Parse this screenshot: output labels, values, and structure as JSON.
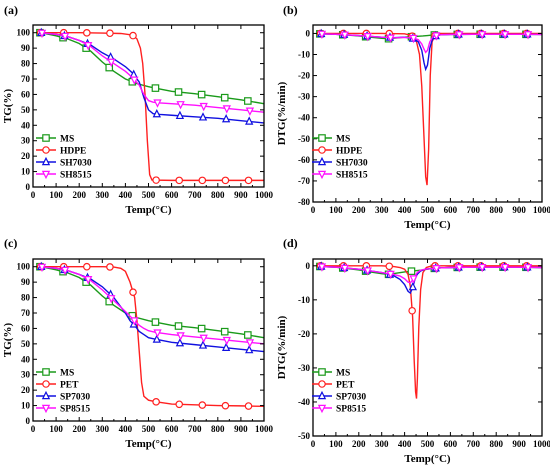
{
  "chart_data": [
    {
      "panel_label": "(a)",
      "type": "line",
      "xlabel": "Temp(°C)",
      "ylabel": "TG(%)",
      "xlim": [
        0,
        1000
      ],
      "ylim": [
        0,
        105
      ],
      "xticks": [
        0,
        100,
        200,
        300,
        400,
        500,
        600,
        700,
        800,
        900,
        1000
      ],
      "yticks": [
        0,
        10,
        20,
        30,
        40,
        50,
        60,
        70,
        80,
        90,
        100
      ],
      "legend_position": "bottom-left",
      "series": [
        {
          "name": "MS",
          "color": "#1a9a1a",
          "marker": "square",
          "x": [
            30,
            50,
            100,
            150,
            200,
            250,
            300,
            350,
            400,
            450,
            500,
            550,
            600,
            700,
            800,
            900,
            1000
          ],
          "y": [
            100,
            99.5,
            98,
            96,
            93,
            88,
            81,
            75,
            70,
            67,
            65,
            63.5,
            62,
            60.5,
            58.5,
            56.5,
            54
          ]
        },
        {
          "name": "HDPE",
          "color": "#ff2020",
          "marker": "circle",
          "x": [
            30,
            100,
            200,
            300,
            380,
            430,
            450,
            465,
            475,
            485,
            495,
            505,
            515,
            600,
            700,
            800,
            900,
            1000
          ],
          "y": [
            100,
            100,
            100,
            99.8,
            99.5,
            98.5,
            96,
            90,
            80,
            60,
            30,
            8,
            4.5,
            4.3,
            4.3,
            4.3,
            4.3,
            4.3
          ]
        },
        {
          "name": "SH7030",
          "color": "#1010e0",
          "marker": "triangle-up",
          "x": [
            30,
            100,
            150,
            200,
            250,
            300,
            350,
            400,
            430,
            460,
            480,
            500,
            520,
            550,
            600,
            700,
            800,
            900,
            1000
          ],
          "y": [
            100,
            99,
            97.5,
            95,
            92,
            87,
            83,
            78,
            74,
            68,
            58,
            50,
            47.5,
            47,
            46.5,
            45.5,
            44.5,
            43,
            41.5
          ]
        },
        {
          "name": "SH8515",
          "color": "#ff10ff",
          "marker": "triangle-down",
          "x": [
            30,
            100,
            150,
            200,
            250,
            300,
            350,
            400,
            430,
            460,
            480,
            500,
            520,
            550,
            600,
            700,
            800,
            900,
            1000
          ],
          "y": [
            100,
            99,
            97.5,
            95,
            91,
            85,
            80,
            75,
            71,
            66,
            60,
            56,
            55,
            54.5,
            54,
            53,
            51.5,
            50,
            48.5
          ]
        }
      ]
    },
    {
      "panel_label": "(b)",
      "type": "line",
      "xlabel": "Temp(°C)",
      "ylabel": "DTG(%/min)",
      "xlim": [
        0,
        1000
      ],
      "ylim": [
        -80,
        4
      ],
      "xticks": [
        0,
        100,
        200,
        300,
        400,
        500,
        600,
        700,
        800,
        900,
        1000
      ],
      "yticks": [
        0,
        -10,
        -20,
        -30,
        -40,
        -50,
        -60,
        -70,
        -80
      ],
      "legend_position": "bottom-left",
      "series": [
        {
          "name": "MS",
          "color": "#1a9a1a",
          "marker": "square",
          "x": [
            30,
            100,
            150,
            200,
            250,
            300,
            330,
            360,
            400,
            440,
            480,
            500,
            520,
            560,
            600,
            700,
            800,
            900,
            1000
          ],
          "y": [
            -0.2,
            -0.4,
            -0.8,
            -1.2,
            -1.8,
            -2.3,
            -2.5,
            -2.2,
            -1.8,
            -1.5,
            -1.2,
            -1.0,
            -0.8,
            -0.6,
            -0.5,
            -0.4,
            -0.4,
            -0.4,
            -0.5
          ]
        },
        {
          "name": "HDPE",
          "color": "#ff2020",
          "marker": "circle",
          "x": [
            30,
            100,
            200,
            300,
            400,
            430,
            450,
            465,
            475,
            485,
            492,
            498,
            505,
            512,
            520,
            535,
            560,
            600,
            700,
            800,
            900,
            1000
          ],
          "y": [
            0,
            0,
            0,
            0,
            -0.2,
            -1,
            -3,
            -10,
            -25,
            -50,
            -68,
            -72,
            -55,
            -20,
            -4,
            -0.5,
            0,
            0,
            0,
            0,
            0,
            0
          ]
        },
        {
          "name": "SH7030",
          "color": "#1010e0",
          "marker": "triangle-up",
          "x": [
            30,
            100,
            200,
            300,
            350,
            400,
            440,
            460,
            475,
            485,
            492,
            500,
            510,
            525,
            560,
            600,
            700,
            800,
            900,
            1000
          ],
          "y": [
            -0.2,
            -0.4,
            -1,
            -1.8,
            -2,
            -1.8,
            -2.5,
            -4,
            -8,
            -14,
            -17,
            -15,
            -7,
            -1.5,
            -0.6,
            -0.5,
            -0.4,
            -0.4,
            -0.4,
            -0.5
          ]
        },
        {
          "name": "SH8515",
          "color": "#ff10ff",
          "marker": "triangle-down",
          "x": [
            30,
            100,
            200,
            300,
            350,
            400,
            440,
            460,
            475,
            485,
            492,
            500,
            510,
            525,
            560,
            600,
            700,
            800,
            900,
            1000
          ],
          "y": [
            -0.2,
            -0.4,
            -1,
            -1.8,
            -2.1,
            -1.9,
            -2.2,
            -3,
            -5,
            -7.5,
            -9,
            -8,
            -4,
            -1.2,
            -0.6,
            -0.5,
            -0.4,
            -0.4,
            -0.4,
            -0.5
          ]
        }
      ]
    },
    {
      "panel_label": "(c)",
      "type": "line",
      "xlabel": "Temp(°C)",
      "ylabel": "TG(%)",
      "xlim": [
        0,
        1000
      ],
      "ylim": [
        0,
        105
      ],
      "xticks": [
        0,
        100,
        200,
        300,
        400,
        500,
        600,
        700,
        800,
        900,
        1000
      ],
      "yticks": [
        0,
        10,
        20,
        30,
        40,
        50,
        60,
        70,
        80,
        90,
        100
      ],
      "legend_position": "bottom-left",
      "series": [
        {
          "name": "MS",
          "color": "#1a9a1a",
          "marker": "square",
          "x": [
            30,
            50,
            100,
            150,
            200,
            250,
            300,
            350,
            400,
            450,
            500,
            550,
            600,
            700,
            800,
            900,
            1000
          ],
          "y": [
            100,
            99.5,
            98,
            96,
            93,
            88,
            81,
            75,
            70,
            67,
            65,
            63.5,
            62,
            60.5,
            58.5,
            56.5,
            54
          ]
        },
        {
          "name": "PET",
          "color": "#ff2020",
          "marker": "circle",
          "x": [
            30,
            100,
            200,
            300,
            350,
            380,
            400,
            420,
            440,
            450,
            460,
            470,
            480,
            500,
            530,
            600,
            700,
            800,
            900,
            1000
          ],
          "y": [
            100,
            100,
            100,
            100,
            99.8,
            99,
            97,
            90,
            80,
            65,
            45,
            25,
            16,
            13.5,
            12.5,
            11,
            10.5,
            10,
            9.8,
            9.5
          ]
        },
        {
          "name": "SP7030",
          "color": "#1010e0",
          "marker": "triangle-up",
          "x": [
            30,
            100,
            150,
            200,
            250,
            300,
            350,
            400,
            420,
            440,
            460,
            480,
            500,
            530,
            600,
            700,
            800,
            900,
            1000
          ],
          "y": [
            100,
            99,
            97.5,
            95,
            92,
            87,
            80,
            70,
            65,
            62,
            58,
            56,
            54,
            53,
            51,
            49.5,
            48,
            46.5,
            45
          ]
        },
        {
          "name": "SP8515",
          "color": "#ff10ff",
          "marker": "triangle-down",
          "x": [
            30,
            100,
            150,
            200,
            250,
            300,
            350,
            400,
            420,
            440,
            460,
            480,
            500,
            530,
            600,
            700,
            800,
            900,
            1000
          ],
          "y": [
            100,
            99,
            97.5,
            95,
            91,
            85,
            78,
            71,
            68,
            65,
            62,
            60,
            58.5,
            57.5,
            56,
            54.5,
            53,
            51.5,
            50
          ]
        }
      ]
    },
    {
      "panel_label": "(d)",
      "type": "line",
      "xlabel": "Temp(°C)",
      "ylabel": "DTG(%/min)",
      "xlim": [
        0,
        1000
      ],
      "ylim": [
        -50,
        2
      ],
      "xticks": [
        0,
        100,
        200,
        300,
        400,
        500,
        600,
        700,
        800,
        900,
        1000
      ],
      "yticks": [
        0,
        -10,
        -20,
        -30,
        -40,
        -50
      ],
      "legend_position": "bottom-left",
      "series": [
        {
          "name": "MS",
          "color": "#1a9a1a",
          "marker": "square",
          "x": [
            30,
            100,
            150,
            200,
            250,
            300,
            330,
            360,
            400,
            440,
            480,
            500,
            520,
            560,
            600,
            700,
            800,
            900,
            1000
          ],
          "y": [
            -0.2,
            -0.4,
            -0.8,
            -1.2,
            -1.8,
            -2.3,
            -2.5,
            -2.2,
            -1.8,
            -1.5,
            -1.2,
            -1.0,
            -0.8,
            -0.6,
            -0.5,
            -0.4,
            -0.4,
            -0.4,
            -0.5
          ]
        },
        {
          "name": "PET",
          "color": "#ff2020",
          "marker": "circle",
          "x": [
            30,
            100,
            200,
            300,
            350,
            380,
            400,
            415,
            425,
            435,
            442,
            448,
            452,
            456,
            462,
            470,
            480,
            495,
            520,
            560,
            600,
            700,
            800,
            900,
            1000
          ],
          "y": [
            0,
            0,
            0,
            0,
            -0.2,
            -0.5,
            -1,
            -2.5,
            -6,
            -15,
            -28,
            -37,
            -39,
            -33,
            -18,
            -7,
            -2,
            -0.5,
            0,
            0,
            0,
            0,
            0,
            0,
            0
          ]
        },
        {
          "name": "SP7030",
          "color": "#1010e0",
          "marker": "triangle-up",
          "x": [
            30,
            100,
            200,
            300,
            350,
            380,
            400,
            415,
            425,
            435,
            445,
            455,
            470,
            490,
            520,
            560,
            600,
            700,
            800,
            900,
            1000
          ],
          "y": [
            -0.2,
            -0.4,
            -1,
            -2,
            -2.8,
            -4,
            -5.5,
            -7.5,
            -8,
            -6.5,
            -4,
            -2.5,
            -1.5,
            -1,
            -0.8,
            -0.6,
            -0.5,
            -0.4,
            -0.4,
            -0.4,
            -0.5
          ]
        },
        {
          "name": "SP8515",
          "color": "#ff10ff",
          "marker": "triangle-down",
          "x": [
            30,
            100,
            200,
            300,
            350,
            380,
            400,
            415,
            425,
            435,
            445,
            455,
            470,
            490,
            520,
            560,
            600,
            700,
            800,
            900,
            1000
          ],
          "y": [
            -0.2,
            -0.4,
            -1,
            -2,
            -2.5,
            -3,
            -3.8,
            -4.8,
            -5,
            -4.2,
            -3,
            -2,
            -1.3,
            -1,
            -0.8,
            -0.6,
            -0.5,
            -0.4,
            -0.4,
            -0.4,
            -0.5
          ]
        }
      ]
    }
  ]
}
